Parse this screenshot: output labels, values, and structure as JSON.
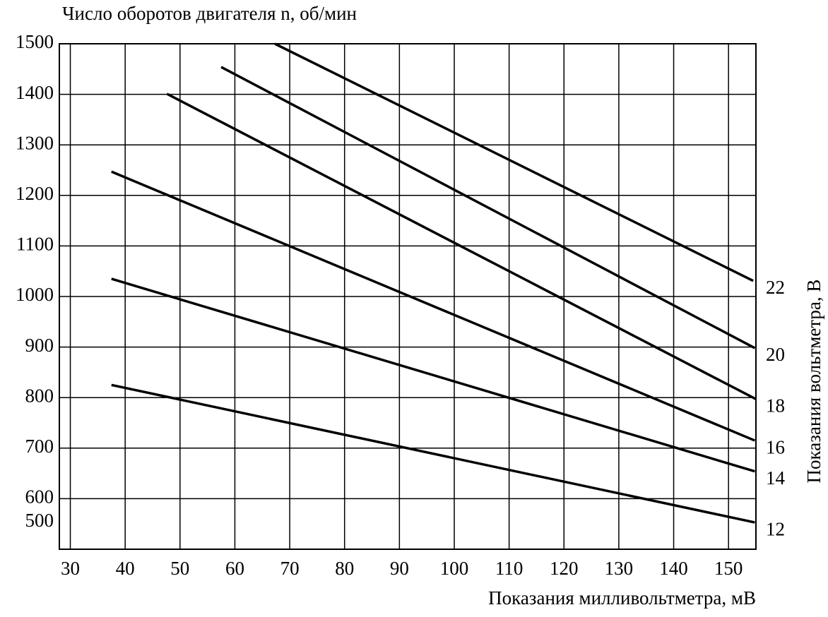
{
  "chart_data": {
    "type": "line",
    "y_label": "Число оборотов двигателя n, об/мин",
    "x_label": "Показания милливольтметра, мВ",
    "y2_label": "Показания вольтметра, В",
    "xlim": [
      28,
      155
    ],
    "ylim": [
      500,
      1500
    ],
    "xticks": [
      30,
      40,
      50,
      60,
      70,
      80,
      90,
      100,
      110,
      120,
      130,
      140,
      150
    ],
    "yticks": [
      500,
      600,
      700,
      800,
      900,
      1000,
      1100,
      1200,
      1300,
      1400,
      1500
    ],
    "grid": true,
    "color": "#000000",
    "series": [
      {
        "name": "22",
        "x": [
          67.3,
          154.5
        ],
        "values": [
          1500,
          1031
        ]
      },
      {
        "name": "20",
        "x": [
          57.5,
          154.8
        ],
        "values": [
          1454,
          898
        ]
      },
      {
        "name": "18",
        "x": [
          47.6,
          155
        ],
        "values": [
          1401,
          797
        ]
      },
      {
        "name": "16",
        "x": [
          37.5,
          154.8
        ],
        "values": [
          1247,
          715
        ]
      },
      {
        "name": "14",
        "x": [
          37.5,
          154.8
        ],
        "values": [
          1035,
          654
        ]
      },
      {
        "name": "12",
        "x": [
          37.5,
          154.8
        ],
        "values": [
          825,
          553
        ]
      }
    ]
  }
}
